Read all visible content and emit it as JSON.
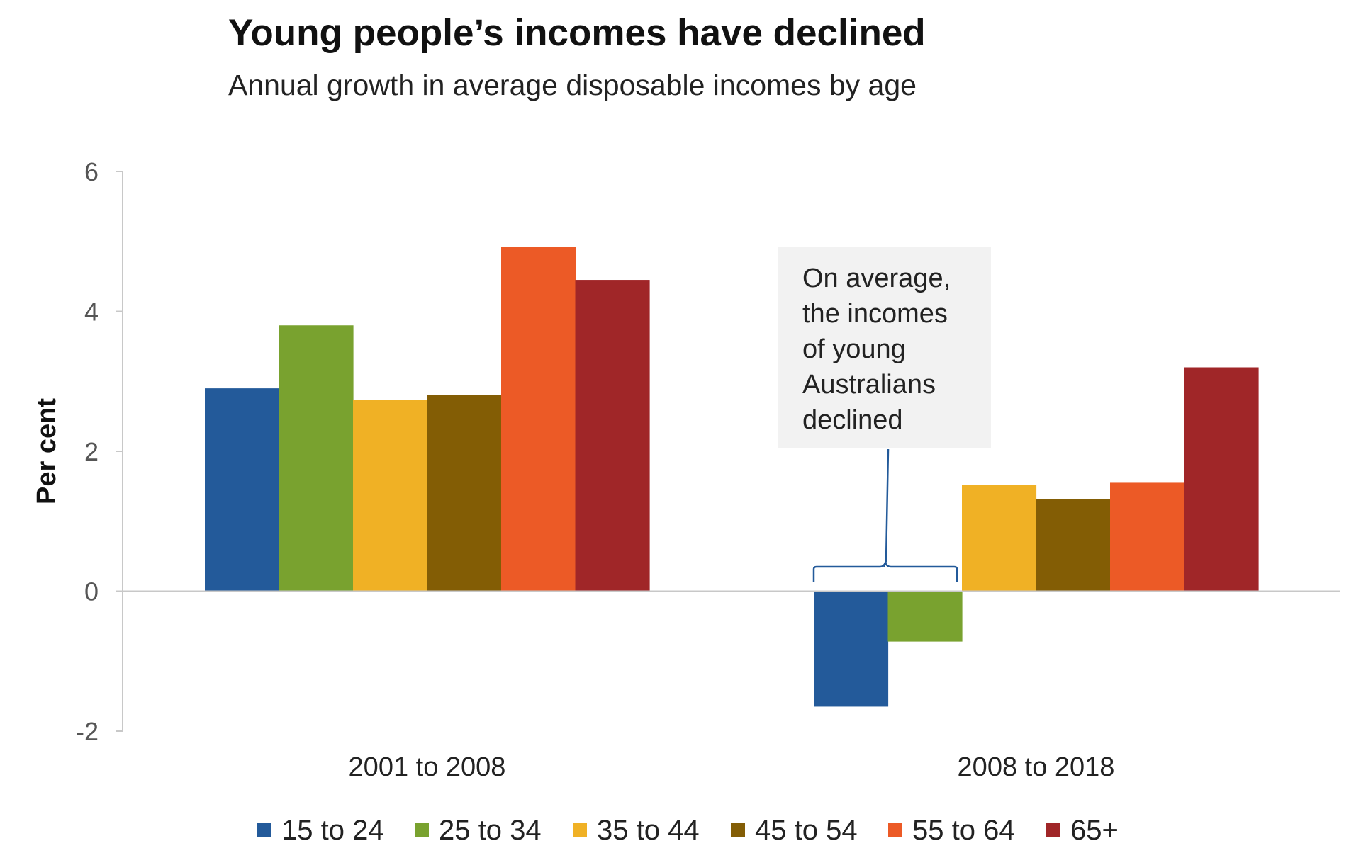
{
  "chart_data": {
    "type": "bar",
    "title": "Young people’s incomes have declined",
    "subtitle": "Annual growth in average disposable incomes by age",
    "ylabel": "Per cent",
    "xlabel": "",
    "ylim": [
      -2,
      6
    ],
    "yticks": [
      "-2",
      "0",
      "2",
      "4",
      "6"
    ],
    "ytick_values": [
      -2,
      0,
      2,
      4,
      6
    ],
    "categories": [
      "2001 to 2008",
      "2008 to 2018"
    ],
    "series": [
      {
        "name": "15 to 24",
        "color": "#235a9a",
        "values": [
          2.9,
          -1.65
        ]
      },
      {
        "name": "25 to 34",
        "color": "#79a22f",
        "values": [
          3.8,
          -0.72
        ]
      },
      {
        "name": "35 to 44",
        "color": "#f0b125",
        "values": [
          2.73,
          1.52
        ]
      },
      {
        "name": "45 to 54",
        "color": "#835d05",
        "values": [
          2.8,
          1.32
        ]
      },
      {
        "name": "55 to 64",
        "color": "#ec5a26",
        "values": [
          4.92,
          1.55
        ]
      },
      {
        "name": "65+",
        "color": "#a02628",
        "values": [
          4.45,
          3.2
        ]
      }
    ],
    "legend_position": "bottom",
    "grid": false,
    "annotation": {
      "lines": [
        "On average,",
        "the incomes",
        "of young",
        "Australians",
        "declined"
      ],
      "target_category": "2008 to 2018",
      "target_series": [
        "15 to 24",
        "25 to 34"
      ]
    }
  }
}
